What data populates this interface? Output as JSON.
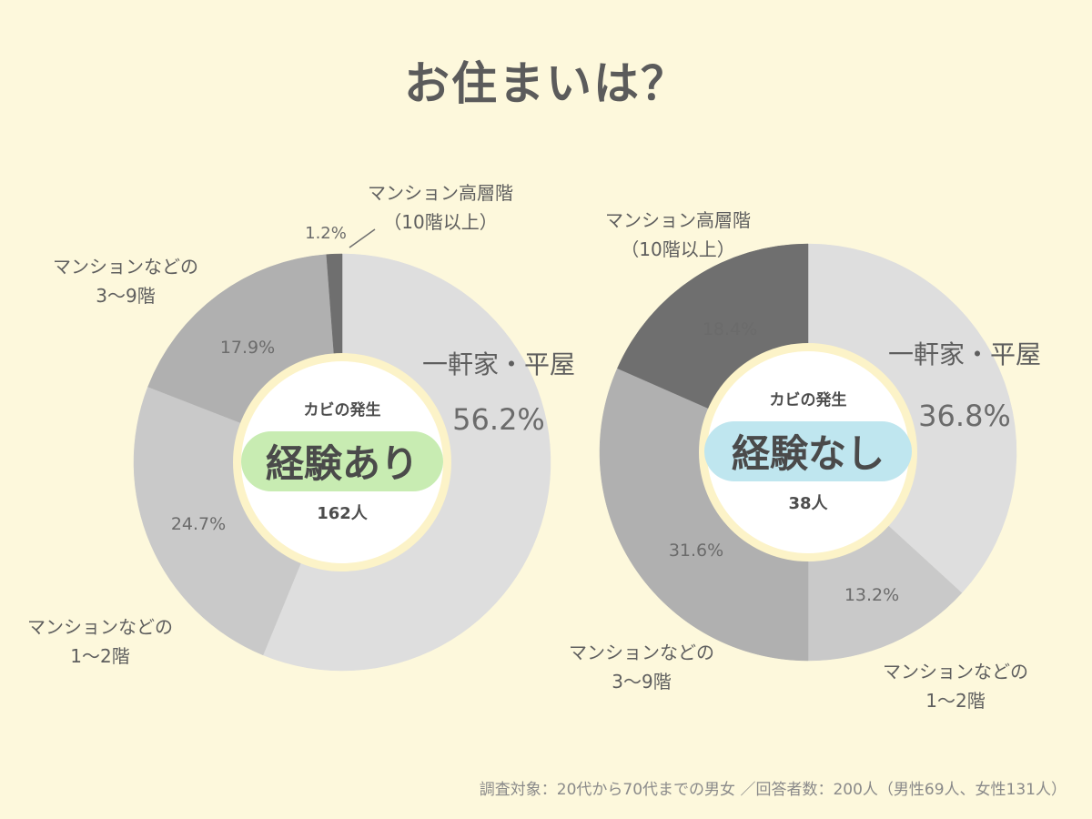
{
  "title": "お住まいは？",
  "footnote": "調査対象：20代から70代までの男女 ／回答者数：200人（男性69人、女性131人）",
  "colors": {
    "background": "#fdf8dc",
    "slice_1": "#dedede",
    "slice_2": "#c9c9c9",
    "slice_3": "#b0b0b0",
    "slice_4": "#6f6f6f",
    "center_ring": "#fcf3c8",
    "badge_experienced": "#c8ecb2",
    "badge_not_experienced": "#bfe6ef"
  },
  "chart_data": [
    {
      "type": "pie",
      "center": {
        "heading": "カビの発生",
        "badge": "経験あり",
        "count": "162人"
      },
      "slices": [
        {
          "label": [
            "一軒家・平屋"
          ],
          "value": 56.2,
          "value_text": "56.2%",
          "color": "#dedede"
        },
        {
          "label": [
            "マンションなどの",
            "1〜2階"
          ],
          "value": 24.7,
          "value_text": "24.7%",
          "color": "#c9c9c9"
        },
        {
          "label": [
            "マンションなどの",
            "3〜9階"
          ],
          "value": 17.9,
          "value_text": "17.9%",
          "color": "#b0b0b0"
        },
        {
          "label": [
            "マンション高層階",
            "（10階以上）"
          ],
          "value": 1.2,
          "value_text": "1.2%",
          "color": "#6f6f6f"
        }
      ]
    },
    {
      "type": "pie",
      "center": {
        "heading": "カビの発生",
        "badge": "経験なし",
        "count": "38人"
      },
      "slices": [
        {
          "label": [
            "一軒家・平屋"
          ],
          "value": 36.8,
          "value_text": "36.8%",
          "color": "#dedede"
        },
        {
          "label": [
            "マンションなどの",
            "1〜2階"
          ],
          "value": 13.2,
          "value_text": "13.2%",
          "color": "#c9c9c9"
        },
        {
          "label": [
            "マンションなどの",
            "3〜9階"
          ],
          "value": 31.6,
          "value_text": "31.6%",
          "color": "#b0b0b0"
        },
        {
          "label": [
            "マンション高層階",
            "（10階以上）"
          ],
          "value": 18.4,
          "value_text": "18.4%",
          "color": "#6f6f6f"
        }
      ]
    }
  ]
}
